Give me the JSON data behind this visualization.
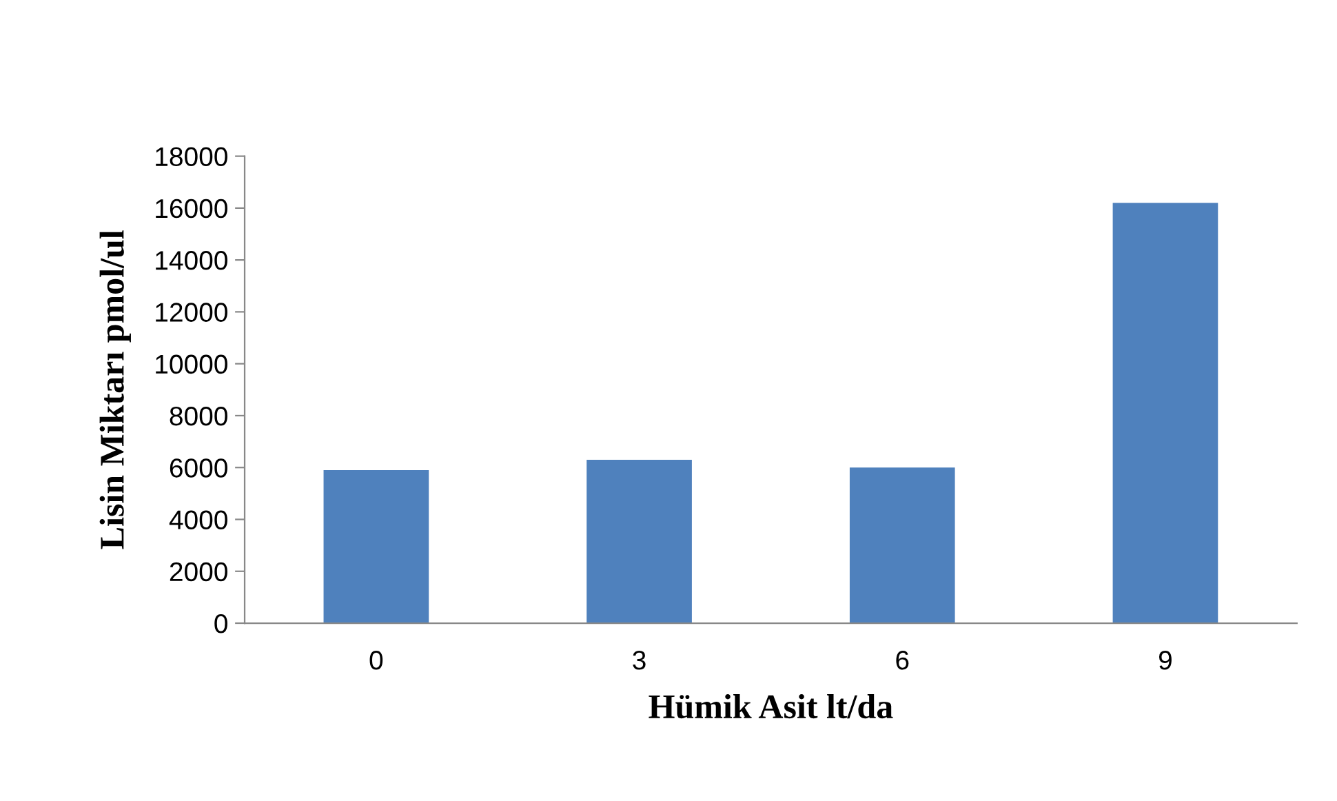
{
  "chart_data": {
    "type": "bar",
    "xlabel": "Hümik Asit lt/da",
    "ylabel": "Lisin Miktarı pmol/ul",
    "categories": [
      "0",
      "3",
      "6",
      "9"
    ],
    "values": [
      5900,
      6300,
      6000,
      16200
    ],
    "color": "#4f81bd",
    "ylim": [
      0,
      18000
    ],
    "yticks": [
      0,
      2000,
      4000,
      6000,
      8000,
      10000,
      12000,
      14000,
      16000,
      18000
    ],
    "grid": false,
    "legend": false
  }
}
